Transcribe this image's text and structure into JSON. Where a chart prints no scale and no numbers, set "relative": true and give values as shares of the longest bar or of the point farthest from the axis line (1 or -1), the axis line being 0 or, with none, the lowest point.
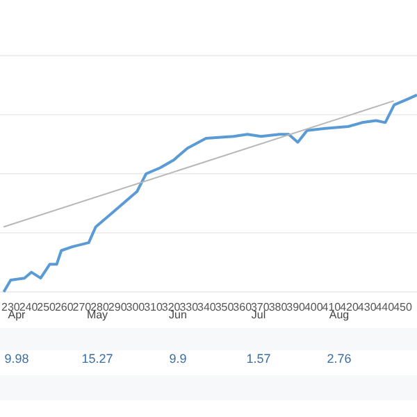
{
  "chart_data": {
    "type": "line",
    "relative": true,
    "grid": "y",
    "xlim": [
      224,
      458
    ],
    "xticks": [
      230,
      240,
      250,
      260,
      270,
      280,
      290,
      300,
      310,
      320,
      330,
      340,
      350,
      360,
      370,
      380,
      390,
      400,
      410,
      420,
      430,
      440,
      450
    ],
    "series": [
      {
        "color": "#5b9bd5",
        "x": [
          226.1,
          230,
          237.7,
          241.6,
          246.8,
          251.9,
          255.8,
          258.4,
          264.8,
          273.8,
          277.7,
          285.5,
          293.2,
          300.9,
          306,
          313.8,
          321.5,
          329.2,
          339.6,
          355.1,
          362.8,
          370.5,
          380.8,
          386,
          391.1,
          396.3,
          406.6,
          419.5,
          427.2,
          435,
          440.2,
          445.2,
          453,
          458
        ],
        "values": [
          0,
          0.06,
          0.07,
          0.1,
          0.07,
          0.14,
          0.14,
          0.21,
          0.23,
          0.25,
          0.33,
          0.39,
          0.45,
          0.51,
          0.6,
          0.63,
          0.67,
          0.73,
          0.78,
          0.79,
          0.8,
          0.79,
          0.8,
          0.8,
          0.76,
          0.82,
          0.83,
          0.84,
          0.86,
          0.87,
          0.86,
          0.95,
          0.98,
          1
        ]
      },
      {
        "type": "line",
        "color": "#b8b8b8",
        "x": [
          226,
          445
        ],
        "values": [
          0.33,
          0.97
        ]
      }
    ],
    "annotations": [
      "Apr",
      "9.98",
      "May",
      "15.27",
      "Jun",
      "9.9",
      "Jul",
      "1.57",
      "Aug",
      "2.76"
    ]
  }
}
